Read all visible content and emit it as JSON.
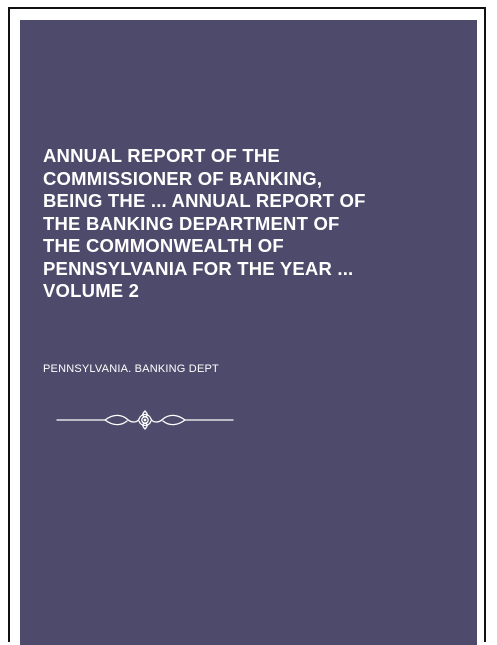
{
  "book": {
    "title_lines": [
      "ANNUAL REPORT OF THE",
      "COMMISSIONER OF BANKING,",
      "BEING THE ... ANNUAL REPORT OF",
      "THE BANKING DEPARTMENT OF",
      "THE COMMONWEALTH OF",
      "PENNSYLVANIA FOR THE YEAR ...",
      "VOLUME 2"
    ],
    "author": "PENNSYLVANIA. BANKING DEPT",
    "colors": {
      "cover": "#4e4a6b",
      "text": "#ffffff",
      "ornament": "#ffffff"
    },
    "ornament_icon": "flourish-ornament-icon"
  }
}
